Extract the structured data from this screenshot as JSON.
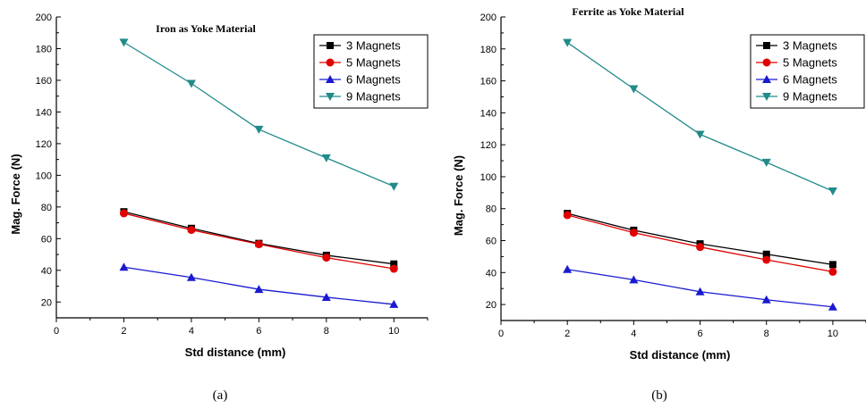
{
  "chart_data": [
    {
      "type": "line",
      "panel_label": "(a)",
      "title": "Iron as Yoke Material",
      "xlabel": "Std distance (mm)",
      "ylabel": "Mag. Force (N)",
      "xlim": [
        0,
        11
      ],
      "ylim": [
        10,
        200
      ],
      "xticks": [
        "0",
        "2",
        "4",
        "6",
        "8",
        "10"
      ],
      "yticks": [
        "20",
        "40",
        "60",
        "80",
        "100",
        "120",
        "140",
        "160",
        "180",
        "200"
      ],
      "legend_position": "top-right",
      "x": [
        2,
        4,
        6,
        8,
        10
      ],
      "series": [
        {
          "name": "3 Magnets",
          "color": "#000000",
          "marker": "square",
          "values": [
            77,
            66.5,
            57,
            49.5,
            44
          ]
        },
        {
          "name": "5 Magnets",
          "color": "#e00000",
          "marker": "circle",
          "values": [
            76,
            65.5,
            56.5,
            48,
            41
          ]
        },
        {
          "name": "6 Magnets",
          "color": "#1a1ad0",
          "marker": "triangle-up",
          "values": [
            42,
            35.5,
            28,
            23,
            18.5
          ]
        },
        {
          "name": "9 Magnets",
          "color": "#218a8a",
          "marker": "triangle-down",
          "values": [
            184,
            158,
            129,
            111,
            93
          ]
        }
      ]
    },
    {
      "type": "line",
      "panel_label": "(b)",
      "title": "Ferrite as Yoke Material",
      "xlabel": "Std distance (mm)",
      "ylabel": "Mag. Force (N)",
      "xlim": [
        0,
        11
      ],
      "ylim": [
        10,
        200
      ],
      "xticks": [
        "0",
        "2",
        "4",
        "6",
        "8",
        "10"
      ],
      "yticks": [
        "20",
        "40",
        "60",
        "80",
        "100",
        "120",
        "140",
        "160",
        "180",
        "200"
      ],
      "legend_position": "top-right",
      "x": [
        2,
        4,
        6,
        8,
        10
      ],
      "series": [
        {
          "name": "3 Magnets",
          "color": "#000000",
          "marker": "square",
          "values": [
            77,
            66.5,
            58,
            51.5,
            45
          ]
        },
        {
          "name": "5 Magnets",
          "color": "#e00000",
          "marker": "circle",
          "values": [
            76,
            65,
            56,
            48,
            40.5
          ]
        },
        {
          "name": "6 Magnets",
          "color": "#1a1ad0",
          "marker": "triangle-up",
          "values": [
            42,
            35.5,
            28,
            23,
            18.5
          ]
        },
        {
          "name": "9 Magnets",
          "color": "#218a8a",
          "marker": "triangle-down",
          "values": [
            184,
            155,
            126.5,
            109,
            91
          ]
        }
      ]
    }
  ]
}
